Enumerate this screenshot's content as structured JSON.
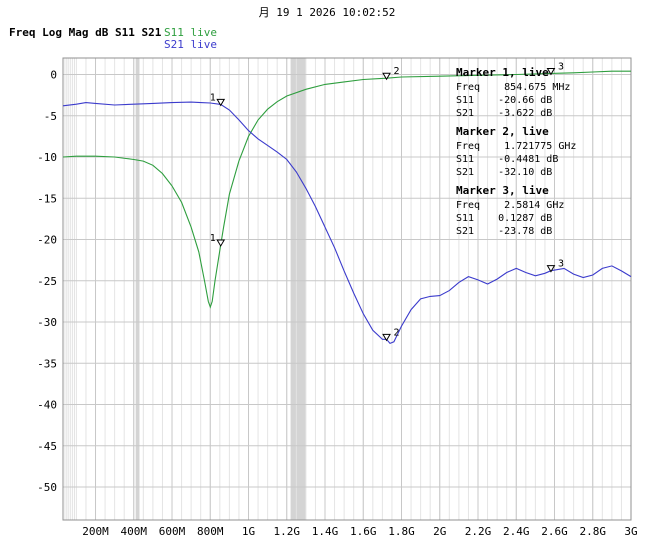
{
  "header": {
    "timestamp": "月 19 1 2026 10:02:52",
    "format_label": "Freq Log Mag dB S11 S21",
    "s11_label": "S11 live",
    "s21_label": "S21 live"
  },
  "colors": {
    "s11": "#2e9e3e",
    "s21": "#3b3bcc",
    "grid_major": "#c8c8c8",
    "grid_minor": "#e4e4e4",
    "highlight_band": "#d4d4d4"
  },
  "markers_panel": [
    {
      "title": "Marker 1, live",
      "lines": [
        "Freq    854.675 MHz",
        "S11    -20.66 dB",
        "S21    -3.622 dB"
      ]
    },
    {
      "title": "Marker 2, live",
      "lines": [
        "Freq    1.721775 GHz",
        "S11    -0.4481 dB",
        "S21    -32.10 dB"
      ]
    },
    {
      "title": "Marker 3, live",
      "lines": [
        "Freq    2.5814 GHz",
        "S11    0.1287 dB",
        "S21    -23.78 dB"
      ]
    }
  ],
  "chart_data": {
    "type": "line",
    "title": "",
    "xlabel": "",
    "ylabel": "",
    "xlim": [
      30000000,
      3000000000
    ],
    "ylim": [
      -54,
      2
    ],
    "grid": true,
    "y_ticks": [
      0,
      -5,
      -10,
      -15,
      -20,
      -25,
      -30,
      -35,
      -40,
      -45,
      -50
    ],
    "y_tick_labels": [
      "0",
      "-5",
      "-10",
      "-15",
      "-20",
      "-25",
      "-30",
      "-35",
      "-40",
      "-45",
      "-50"
    ],
    "x_ticks": [
      200000000,
      400000000,
      600000000,
      800000000,
      1000000000,
      1200000000,
      1400000000,
      1600000000,
      1800000000,
      2000000000,
      2200000000,
      2400000000,
      2600000000,
      2800000000,
      3000000000
    ],
    "x_tick_labels": [
      "200M",
      "400M",
      "600M",
      "800M",
      "1G",
      "1.2G",
      "1.4G",
      "1.6G",
      "1.8G",
      "2G",
      "2.2G",
      "2.4G",
      "2.6G",
      "2.8G",
      "3G"
    ],
    "highlight_bands": [
      [
        1220000000,
        1300000000
      ],
      [
        410000000,
        430000000
      ]
    ],
    "series": [
      {
        "name": "S11",
        "x": [
          30000000,
          100000000,
          200000000,
          300000000,
          400000000,
          450000000,
          500000000,
          550000000,
          600000000,
          650000000,
          700000000,
          740000000,
          770000000,
          790000000,
          800000000,
          810000000,
          825000000,
          840000000,
          854675000,
          870000000,
          900000000,
          950000000,
          1000000000,
          1050000000,
          1100000000,
          1150000000,
          1200000000,
          1300000000,
          1400000000,
          1500000000,
          1600000000,
          1721775000,
          1800000000,
          2000000000,
          2200000000,
          2400000000,
          2581400000,
          2700000000,
          2800000000,
          2900000000,
          3000000000
        ],
        "values": [
          -10.0,
          -9.9,
          -9.9,
          -10.0,
          -10.3,
          -10.5,
          -11.0,
          -12.0,
          -13.5,
          -15.5,
          -18.5,
          -21.5,
          -25.0,
          -27.5,
          -28.2,
          -27.5,
          -25.0,
          -22.8,
          -20.66,
          -18.5,
          -14.5,
          -10.5,
          -7.5,
          -5.5,
          -4.2,
          -3.3,
          -2.6,
          -1.8,
          -1.2,
          -0.9,
          -0.6,
          -0.4481,
          -0.3,
          -0.2,
          -0.1,
          0.0,
          0.1287,
          0.2,
          0.3,
          0.4,
          0.4
        ]
      },
      {
        "name": "S21",
        "x": [
          30000000,
          100000000,
          150000000,
          200000000,
          300000000,
          400000000,
          500000000,
          600000000,
          700000000,
          750000000,
          800000000,
          854675000,
          900000000,
          950000000,
          1000000000,
          1050000000,
          1100000000,
          1150000000,
          1200000000,
          1250000000,
          1300000000,
          1350000000,
          1400000000,
          1450000000,
          1500000000,
          1550000000,
          1600000000,
          1650000000,
          1700000000,
          1721775000,
          1740000000,
          1760000000,
          1800000000,
          1850000000,
          1900000000,
          1950000000,
          2000000000,
          2050000000,
          2100000000,
          2150000000,
          2200000000,
          2250000000,
          2300000000,
          2350000000,
          2400000000,
          2450000000,
          2500000000,
          2550000000,
          2581400000,
          2650000000,
          2700000000,
          2750000000,
          2800000000,
          2850000000,
          2900000000,
          2950000000,
          3000000000
        ],
        "values": [
          -3.8,
          -3.6,
          -3.4,
          -3.5,
          -3.7,
          -3.6,
          -3.5,
          -3.4,
          -3.35,
          -3.4,
          -3.45,
          -3.622,
          -4.3,
          -5.5,
          -6.8,
          -7.8,
          -8.6,
          -9.4,
          -10.3,
          -11.8,
          -13.8,
          -16.0,
          -18.5,
          -21.0,
          -23.8,
          -26.5,
          -29.0,
          -31.0,
          -32.1,
          -32.1,
          -32.6,
          -32.4,
          -30.5,
          -28.5,
          -27.2,
          -26.9,
          -26.8,
          -26.2,
          -25.2,
          -24.5,
          -24.9,
          -25.4,
          -24.8,
          -24.0,
          -23.5,
          -24.0,
          -24.4,
          -24.1,
          -23.78,
          -23.5,
          -24.2,
          -24.6,
          -24.3,
          -23.5,
          -23.2,
          -23.8,
          -24.5
        ]
      }
    ],
    "markers": [
      {
        "label": "1",
        "x": 854675000,
        "s11": -20.66,
        "s21": -3.622
      },
      {
        "label": "2",
        "x": 1721775000,
        "s11": -0.4481,
        "s21": -32.1
      },
      {
        "label": "3",
        "x": 2581400000,
        "s11": 0.1287,
        "s21": -23.78
      }
    ]
  }
}
